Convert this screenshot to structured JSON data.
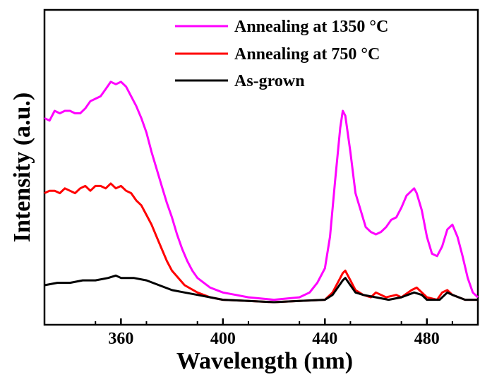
{
  "chart_data": {
    "type": "line",
    "title": "",
    "xlabel": "Wavelength (nm)",
    "ylabel": "Intensity (a.u.)",
    "xlim": [
      330,
      500
    ],
    "ylim": [
      0,
      1
    ],
    "xticks": [
      360,
      400,
      440,
      480
    ],
    "xtick_labels": [
      "360",
      "400",
      "440",
      "480"
    ],
    "y_tick_labels_shown": false,
    "grid": false,
    "legend_position": "top-right",
    "series": [
      {
        "name": "Annealing at 1350 °C",
        "color": "#ff00ff",
        "x": [
          330,
          332,
          334,
          336,
          338,
          340,
          342,
          344,
          346,
          348,
          350,
          352,
          354,
          356,
          358,
          360,
          362,
          364,
          366,
          368,
          370,
          372,
          374,
          376,
          378,
          380,
          382,
          384,
          386,
          388,
          390,
          395,
          400,
          405,
          410,
          415,
          420,
          425,
          430,
          434,
          437,
          440,
          442,
          444,
          446,
          447,
          448,
          450,
          452,
          454,
          456,
          458,
          460,
          462,
          464,
          466,
          468,
          470,
          472,
          474,
          475,
          476,
          478,
          480,
          482,
          484,
          486,
          488,
          490,
          492,
          494,
          496,
          498,
          500
        ],
        "y": [
          0.76,
          0.75,
          0.79,
          0.78,
          0.79,
          0.79,
          0.78,
          0.78,
          0.8,
          0.83,
          0.84,
          0.85,
          0.88,
          0.91,
          0.9,
          0.91,
          0.89,
          0.85,
          0.81,
          0.76,
          0.7,
          0.62,
          0.55,
          0.48,
          0.41,
          0.35,
          0.28,
          0.22,
          0.17,
          0.13,
          0.1,
          0.06,
          0.04,
          0.03,
          0.02,
          0.015,
          0.01,
          0.015,
          0.02,
          0.04,
          0.08,
          0.14,
          0.27,
          0.5,
          0.72,
          0.79,
          0.77,
          0.62,
          0.45,
          0.38,
          0.31,
          0.29,
          0.28,
          0.29,
          0.31,
          0.34,
          0.35,
          0.39,
          0.44,
          0.46,
          0.47,
          0.45,
          0.38,
          0.27,
          0.2,
          0.19,
          0.23,
          0.3,
          0.32,
          0.27,
          0.19,
          0.1,
          0.04,
          0.02
        ]
      },
      {
        "name": "Annealing at 750 °C",
        "color": "#ff0000",
        "x": [
          330,
          332,
          334,
          336,
          338,
          340,
          342,
          344,
          346,
          348,
          350,
          352,
          354,
          356,
          358,
          360,
          362,
          364,
          366,
          368,
          370,
          372,
          374,
          376,
          378,
          380,
          385,
          390,
          395,
          400,
          410,
          420,
          430,
          440,
          443,
          445,
          447,
          448,
          450,
          452,
          455,
          458,
          460,
          464,
          468,
          470,
          474,
          476,
          480,
          484,
          486,
          488,
          490,
          495,
          500
        ],
        "y": [
          0.45,
          0.46,
          0.46,
          0.45,
          0.47,
          0.46,
          0.45,
          0.47,
          0.48,
          0.46,
          0.48,
          0.48,
          0.47,
          0.49,
          0.47,
          0.48,
          0.46,
          0.45,
          0.42,
          0.4,
          0.36,
          0.32,
          0.27,
          0.22,
          0.17,
          0.13,
          0.07,
          0.04,
          0.02,
          0.01,
          0.005,
          0.0,
          0.005,
          0.01,
          0.04,
          0.08,
          0.12,
          0.13,
          0.09,
          0.05,
          0.03,
          0.02,
          0.04,
          0.02,
          0.03,
          0.02,
          0.05,
          0.06,
          0.02,
          0.01,
          0.04,
          0.05,
          0.03,
          0.01,
          0.01
        ]
      },
      {
        "name": "As-grown",
        "color": "#000000",
        "x": [
          330,
          335,
          340,
          345,
          350,
          355,
          358,
          360,
          365,
          370,
          375,
          380,
          385,
          390,
          395,
          400,
          410,
          420,
          430,
          440,
          443,
          445,
          447,
          448,
          450,
          452,
          455,
          460,
          465,
          470,
          475,
          478,
          480,
          485,
          488,
          490,
          495,
          500
        ],
        "y": [
          0.07,
          0.08,
          0.08,
          0.09,
          0.09,
          0.1,
          0.11,
          0.1,
          0.1,
          0.09,
          0.07,
          0.05,
          0.04,
          0.03,
          0.02,
          0.01,
          0.005,
          0.0,
          0.005,
          0.01,
          0.03,
          0.06,
          0.09,
          0.1,
          0.07,
          0.04,
          0.03,
          0.02,
          0.01,
          0.02,
          0.04,
          0.03,
          0.01,
          0.01,
          0.04,
          0.03,
          0.01,
          0.01
        ]
      }
    ]
  }
}
